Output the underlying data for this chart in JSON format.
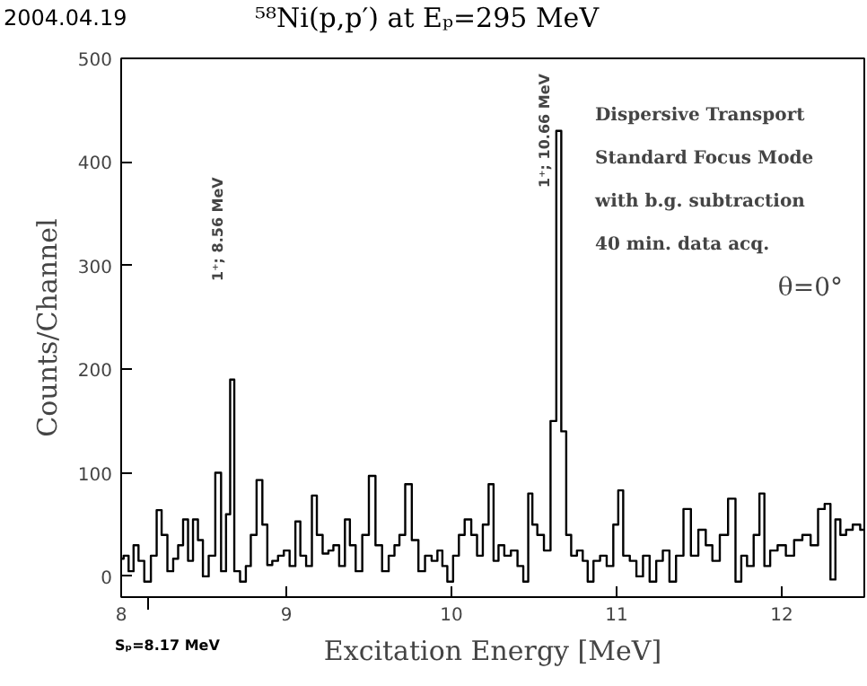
{
  "chart_data": {
    "type": "step",
    "title": "⁵⁸Ni(p,p′) at Eₚ=295 MeV",
    "xlabel": "Excitation Energy [MeV]",
    "ylabel": "Counts/Channel",
    "annotations": [
      "2004.04.19",
      "Dispersive Transport",
      "Standard Focus Mode",
      "with b.g. subtraction",
      "40 min. data acq.",
      "θ=0°",
      "1⁺; 8.56 MeV",
      "1⁺; 10.66 MeV",
      "Sₚ=8.17 MeV"
    ],
    "x": [
      8.0,
      8.03,
      8.06,
      8.09,
      8.12,
      8.16,
      8.2,
      8.23,
      8.26,
      8.3,
      8.33,
      8.36,
      8.39,
      8.42,
      8.45,
      8.48,
      8.51,
      8.55,
      8.59,
      8.62,
      8.65,
      8.67,
      8.7,
      8.74,
      8.77,
      8.8,
      8.84,
      8.87,
      8.9,
      8.93,
      8.97,
      9.0,
      9.04,
      9.07,
      9.1,
      9.14,
      9.17,
      9.2,
      9.24,
      9.27,
      9.3,
      9.34,
      9.37,
      9.4,
      9.44,
      9.48,
      9.52,
      9.56,
      9.6,
      9.64,
      9.67,
      9.7,
      9.74,
      9.78,
      9.82,
      9.86,
      9.9,
      9.93,
      9.96,
      9.99,
      10.03,
      10.06,
      10.1,
      10.14,
      10.17,
      10.21,
      10.24,
      10.27,
      10.3,
      10.34,
      10.38,
      10.42,
      10.45,
      10.48,
      10.5,
      10.54,
      10.58,
      10.62,
      10.65,
      10.68,
      10.71,
      10.74,
      10.78,
      10.81,
      10.84,
      10.88,
      10.92,
      10.96,
      11.0,
      11.02,
      11.06,
      11.1,
      11.14,
      11.18,
      11.22,
      11.26,
      11.3,
      11.34,
      11.38,
      11.43,
      11.47,
      11.52,
      11.56,
      11.6,
      11.65,
      11.7,
      11.74,
      11.77,
      11.81,
      11.85,
      11.88,
      11.91,
      11.95,
      12.0,
      12.05,
      12.1,
      12.15,
      12.2,
      12.24,
      12.28,
      12.31,
      12.34,
      12.37,
      12.41,
      12.45,
      12.5
    ],
    "values": [
      17,
      20,
      5,
      30,
      15,
      -5,
      20,
      64,
      40,
      5,
      17,
      30,
      55,
      15,
      55,
      35,
      0,
      20,
      100,
      5,
      60,
      190,
      5,
      -5,
      10,
      40,
      93,
      50,
      11,
      15,
      20,
      25,
      10,
      53,
      20,
      10,
      78,
      40,
      22,
      25,
      30,
      10,
      55,
      30,
      5,
      40,
      97,
      30,
      5,
      20,
      30,
      40,
      89,
      35,
      5,
      20,
      15,
      25,
      10,
      -5,
      20,
      40,
      55,
      40,
      20,
      50,
      89,
      15,
      30,
      20,
      25,
      10,
      -5,
      80,
      50,
      40,
      25,
      150,
      430,
      140,
      40,
      20,
      25,
      15,
      -5,
      15,
      20,
      10,
      50,
      83,
      20,
      15,
      0,
      20,
      -5,
      15,
      25,
      -5,
      20,
      65,
      20,
      45,
      30,
      15,
      40,
      75,
      -5,
      20,
      10,
      40,
      80,
      10,
      25,
      30,
      20,
      35,
      40,
      30,
      65,
      70,
      -3,
      55,
      40,
      45,
      50,
      45
    ],
    "xlim": [
      8,
      12.5
    ],
    "ylim": [
      -20,
      500
    ],
    "xticks": [
      8,
      9,
      10,
      11,
      12
    ],
    "yticks": [
      0,
      100,
      200,
      300,
      400,
      500
    ],
    "color": "#000000",
    "grid": false
  }
}
